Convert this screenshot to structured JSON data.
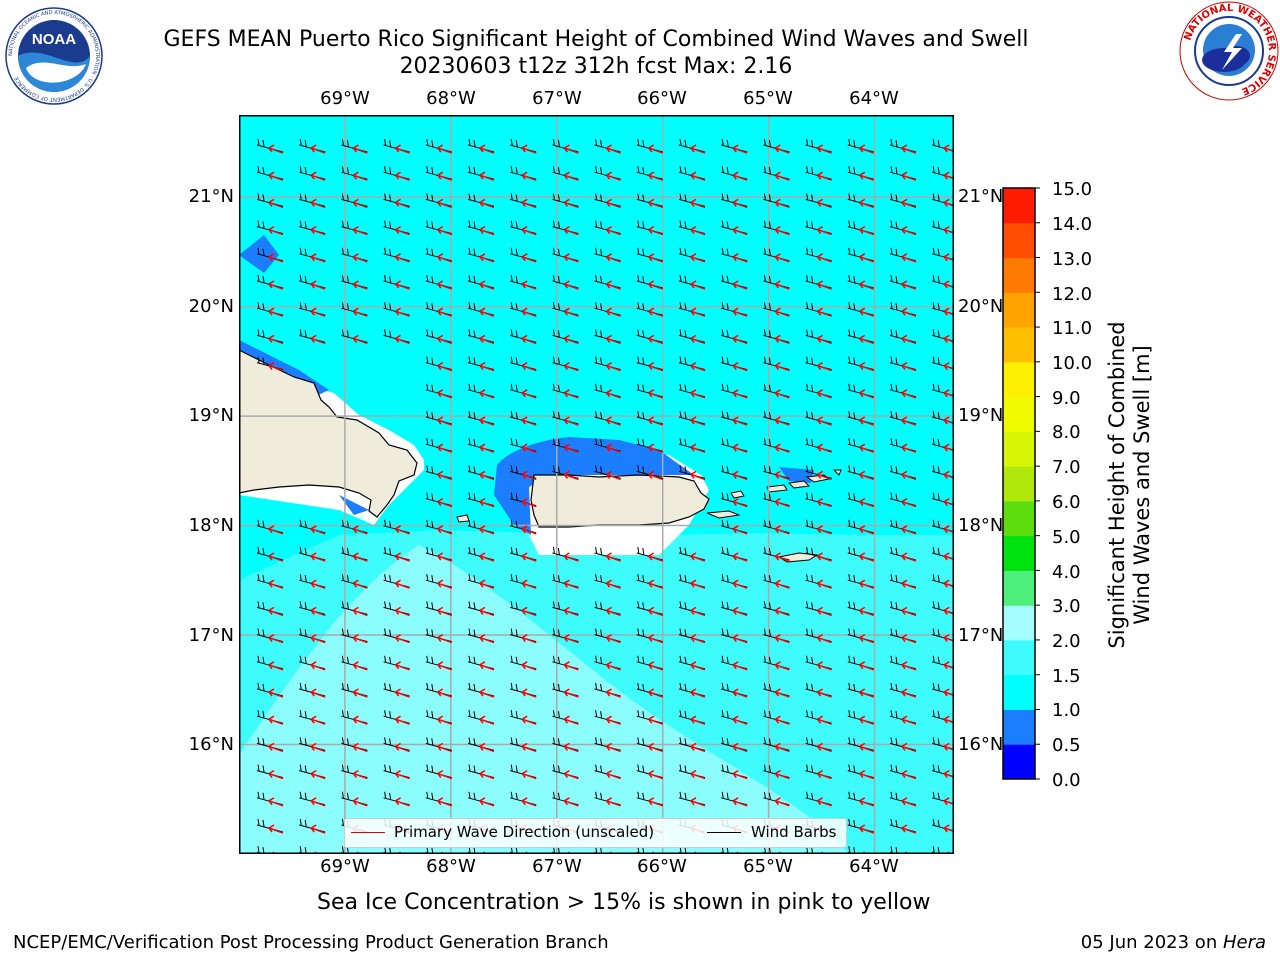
{
  "title": {
    "line1": "GEFS MEAN Puerto Rico Significant Height of Combined Wind Waves and Swell",
    "line2": "20230603 t12z 312h fcst   Max: 2.16"
  },
  "logos": {
    "noaa": {
      "text": "NOAA",
      "ring_text": "NATIONAL OCEANIC AND ATMOSPHERIC ADMINISTRATION · U.S. DEPARTMENT OF COMMERCE"
    },
    "nws": {
      "ring_text": "NATIONAL WEATHER SERVICE"
    }
  },
  "map": {
    "lon_labels": [
      "69°W",
      "68°W",
      "67°W",
      "66°W",
      "65°W",
      "64°W"
    ],
    "lat_labels": [
      "21°N",
      "20°N",
      "19°N",
      "18°N",
      "17°N",
      "16°N"
    ],
    "extent": {
      "lon_min": -70.0,
      "lon_max": -63.25,
      "lat_min": 15.0,
      "lat_max": 21.75
    },
    "grid_lons": [
      -69,
      -68,
      -67,
      -66,
      -65,
      -64
    ],
    "grid_lats": [
      21,
      20,
      19,
      18,
      17,
      16
    ],
    "colors": {
      "land": "#efecdc",
      "no_data": "#ffffff",
      "wave_0_5_1_0": "#1a7eff",
      "wave_1_0_1_5": "#00ffff",
      "wave_1_5_2_0": "#3ffcfc",
      "wave_2_0_3_0": "#a6fdfd",
      "wave_direction_arrow": "#ff0000",
      "wind_barb": "#000000",
      "grid": "#aaaaaa"
    }
  },
  "colorbar": {
    "label_line1": "Significant Height of Combined",
    "label_line2": "Wind Waves and Swell [m]",
    "ticks": [
      "15.0",
      "14.0",
      "13.0",
      "12.0",
      "11.0",
      "10.0",
      "9.0",
      "8.0",
      "7.0",
      "6.0",
      "5.0",
      "4.0",
      "3.0",
      "2.0",
      "1.5",
      "1.0",
      "0.5",
      "0.0"
    ],
    "levels": [
      {
        "from": 0.0,
        "to": 0.5,
        "color": "#0000ff"
      },
      {
        "from": 0.5,
        "to": 1.0,
        "color": "#1a7eff"
      },
      {
        "from": 1.0,
        "to": 1.5,
        "color": "#00ffff"
      },
      {
        "from": 1.5,
        "to": 2.0,
        "color": "#3ffcfc"
      },
      {
        "from": 2.0,
        "to": 3.0,
        "color": "#a6fdfd"
      },
      {
        "from": 3.0,
        "to": 4.0,
        "color": "#4ef07b"
      },
      {
        "from": 4.0,
        "to": 5.0,
        "color": "#00e20e"
      },
      {
        "from": 5.0,
        "to": 6.0,
        "color": "#5ddd0d"
      },
      {
        "from": 6.0,
        "to": 7.0,
        "color": "#b0e80a"
      },
      {
        "from": 7.0,
        "to": 8.0,
        "color": "#d7f605"
      },
      {
        "from": 8.0,
        "to": 9.0,
        "color": "#f0fb00"
      },
      {
        "from": 9.0,
        "to": 10.0,
        "color": "#fff000"
      },
      {
        "from": 10.0,
        "to": 11.0,
        "color": "#ffbf00"
      },
      {
        "from": 11.0,
        "to": 12.0,
        "color": "#ffa300"
      },
      {
        "from": 12.0,
        "to": 13.0,
        "color": "#ff7a00"
      },
      {
        "from": 13.0,
        "to": 14.0,
        "color": "#ff4d00"
      },
      {
        "from": 14.0,
        "to": 15.0,
        "color": "#ff1c00"
      }
    ]
  },
  "legend": {
    "wave_direction": "Primary Wave Direction (unscaled)",
    "wind_barbs": "Wind Barbs"
  },
  "footnote": "Sea Ice Concentration > 15% is shown in pink to yellow",
  "credits": "NCEP/EMC/Verification Post Processing Product Generation Branch",
  "date": {
    "text": "05 Jun 2023 on ",
    "machine": "Hera"
  }
}
